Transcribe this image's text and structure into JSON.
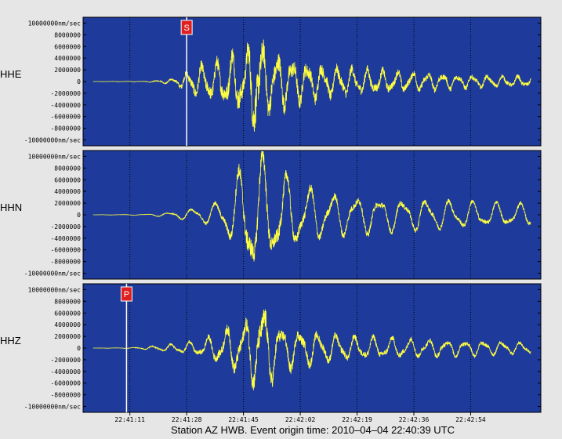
{
  "chart_data": {
    "type": "line",
    "caption": "Station AZ HWB.  Event origin time: 2010–04–04 22:40:39 UTC",
    "background_color": "#e6e6e6",
    "plot_color": "#1e3a9a",
    "trace_color": "#ffff40",
    "marker_color": "#e02020",
    "marker_line_color": "#ffffff",
    "grid": "dotted vertical",
    "xlim_seconds": [
      -3,
      134
    ],
    "x_tick_seconds": [
      11,
      28,
      45,
      62,
      79,
      96,
      113
    ],
    "x_tick_labels": [
      "22:41:11",
      "22:41:28",
      "22:41:45",
      "22:42:02",
      "22:42:19",
      "22:42:36",
      "22:42:54"
    ],
    "ylim": [
      -11000000,
      11000000
    ],
    "y_ticks": [
      10000000,
      8000000,
      6000000,
      4000000,
      2000000,
      0,
      -2000000,
      -4000000,
      -6000000,
      -8000000,
      -10000000
    ],
    "y_tick_labels": [
      "10000000nm/sec",
      "8000000",
      "6000000",
      "4000000",
      "2000000",
      "0",
      "-2000000",
      "-4000000",
      "-6000000",
      "-8000000",
      "-10000000nm/sec"
    ],
    "panels": [
      {
        "channel": "HHE",
        "marker": {
          "label": "S",
          "x_seconds": 28
        },
        "envelope_s": [
          0,
          15,
          20,
          24,
          27,
          30,
          34,
          38,
          41,
          44,
          45.5,
          47,
          49,
          51,
          53,
          56,
          60,
          65,
          70,
          75,
          80,
          90,
          100,
          110,
          120,
          131
        ],
        "envelope_amp": [
          0,
          50000,
          200000,
          500000,
          1200000,
          2500000,
          3000000,
          3500000,
          4500000,
          5000000,
          4000000,
          7000000,
          9000000,
          6000000,
          5000000,
          4500000,
          3800000,
          3200000,
          2800000,
          2500000,
          2200000,
          1800000,
          1500000,
          1200000,
          1000000,
          900000
        ],
        "period_s": 4.5,
        "noise_ratio": 0.35
      },
      {
        "channel": "HHN",
        "marker": null,
        "envelope_s": [
          0,
          15,
          20,
          24,
          28,
          32,
          36,
          40,
          43,
          46,
          49,
          51,
          53,
          56,
          60,
          65,
          70,
          80,
          90,
          100,
          110,
          120,
          131
        ],
        "envelope_amp": [
          0,
          80000,
          300000,
          500000,
          1000000,
          1500000,
          2000000,
          4000000,
          7000000,
          11000000,
          11000000,
          10500000,
          9000000,
          8000000,
          6000000,
          5000000,
          4000000,
          3500000,
          3000000,
          2800000,
          2500000,
          2200000,
          2000000
        ],
        "period_s": 7,
        "noise_ratio": 0.15
      },
      {
        "channel": "HHZ",
        "marker": {
          "label": "P",
          "x_seconds": 10
        },
        "envelope_s": [
          0,
          10,
          15,
          20,
          25,
          30,
          35,
          40,
          42,
          46,
          49,
          51,
          53,
          56,
          60,
          65,
          70,
          80,
          90,
          100,
          110,
          120,
          131
        ],
        "envelope_amp": [
          0,
          50000,
          200000,
          500000,
          800000,
          1200000,
          2000000,
          3500000,
          4000000,
          5000000,
          7000000,
          8000000,
          6000000,
          4000000,
          3500000,
          3000000,
          2500000,
          2000000,
          1800000,
          1600000,
          1400000,
          1200000,
          1000000
        ],
        "period_s": 5.5,
        "noise_ratio": 0.25
      }
    ]
  }
}
